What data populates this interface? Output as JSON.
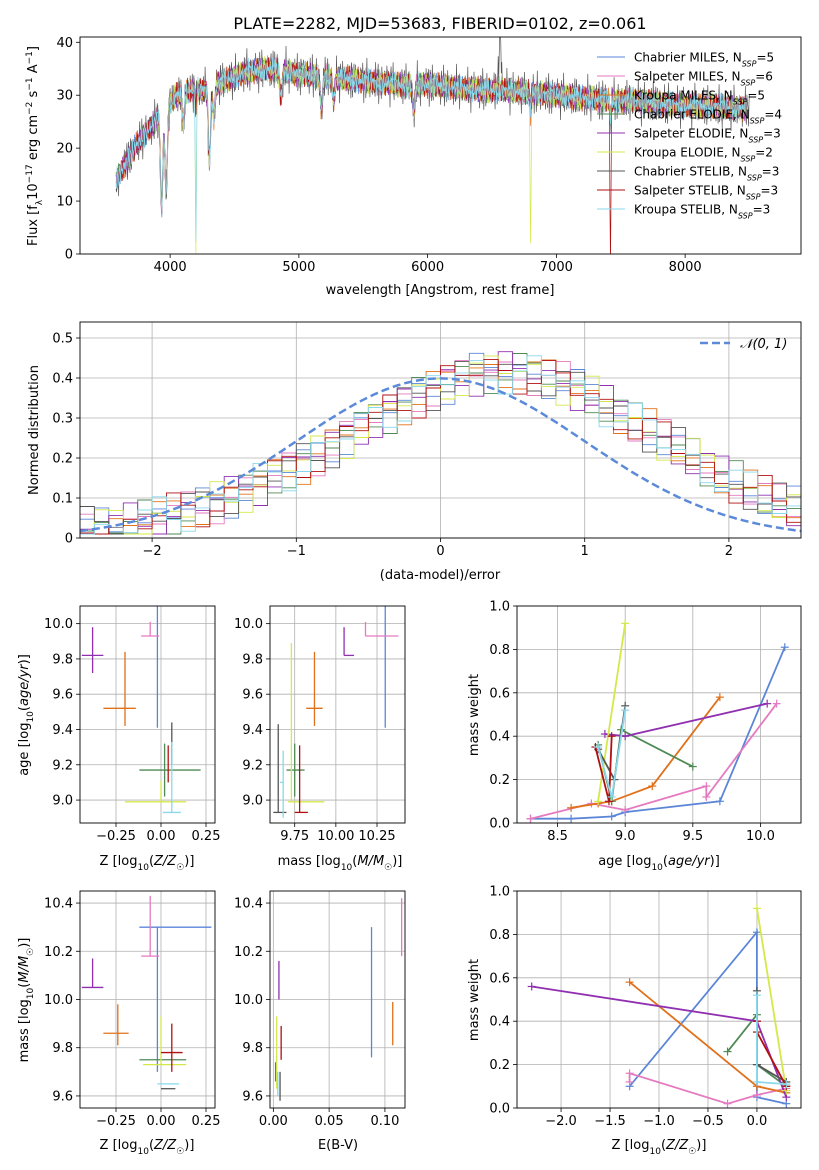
{
  "figure_title": "PLATE=2282, MJD=53683, FIBERID=0102, z=0.061",
  "fit_names": [
    "Chabrier MILES",
    "Salpeter MILES",
    "Kroupa MILES",
    "Chabrier ELODIE",
    "Salpeter ELODIE",
    "Kroupa ELODIE",
    "Chabrier STELIB",
    "Salpeter STELIB",
    "Kroupa STELIB"
  ],
  "fit_colors": [
    "#5b86d8",
    "#e57ac0",
    "#e0701a",
    "#4f8a54",
    "#9030b0",
    "#d4e84a",
    "#555555",
    "#b01010",
    "#8ad8ec"
  ],
  "chart_data": [
    {
      "id": "spectrum",
      "type": "line",
      "xlabel": "wavelength [Angstrom, rest frame]",
      "ylabel": "Flux [f_λ10^-17 erg cm^-2 s^-1 A^-1]",
      "xlim": [
        3300,
        8900
      ],
      "ylim": [
        0,
        41
      ],
      "xticks": [
        4000,
        5000,
        6000,
        7000,
        8000
      ],
      "yticks": [
        0,
        10,
        20,
        30,
        40
      ],
      "grid": false,
      "legend_position": "top-right",
      "legend": [
        "Chabrier MILES, N_SSP=5",
        "Salpeter MILES, N_SSP=6",
        "Kroupa MILES, N_SSP=5",
        "Chabrier ELODIE, N_SSP=4",
        "Salpeter ELODIE, N_SSP=3",
        "Kroupa ELODIE, N_SSP=2",
        "Chabrier STELIB, N_SSP=3",
        "Salpeter STELIB, N_SSP=3",
        "Kroupa STELIB, N_SSP=3"
      ],
      "continuum": {
        "x": [
          3580,
          3650,
          3750,
          3850,
          3950,
          4050,
          4150,
          4250,
          4350,
          4450,
          4600,
          4800,
          5000,
          5200,
          5400,
          5600,
          5800,
          6000,
          6200,
          6400,
          6600,
          6800,
          7000,
          7200,
          7400,
          7600,
          7800,
          8000,
          8200,
          8400,
          8500
        ],
        "y": [
          14,
          17,
          21,
          24,
          27,
          30,
          31,
          31,
          32,
          33,
          34.5,
          35,
          34,
          33.5,
          33,
          32.5,
          32,
          32,
          31.5,
          31,
          31,
          30.5,
          30,
          29.5,
          29,
          29,
          28.5,
          28,
          28,
          27.5,
          27.5
        ]
      },
      "features": [
        {
          "x": 3934,
          "depth": 18
        },
        {
          "x": 3969,
          "depth": 16
        },
        {
          "x": 4102,
          "depth": 6
        },
        {
          "x": 4200,
          "depth": 30
        },
        {
          "x": 4305,
          "depth": 14
        },
        {
          "x": 4340,
          "depth": 6
        },
        {
          "x": 4861,
          "depth": 5
        },
        {
          "x": 5175,
          "depth": 6
        },
        {
          "x": 5270,
          "depth": 4
        },
        {
          "x": 5892,
          "depth": 5
        },
        {
          "x": 6563,
          "depth": -10
        },
        {
          "x": 6800,
          "depth": 30
        },
        {
          "x": 7420,
          "depth": 30
        }
      ]
    },
    {
      "id": "residuals",
      "type": "histogram",
      "xlabel": "(data-model)/error",
      "ylabel": "Normed distribution",
      "xlim": [
        -2.5,
        2.5
      ],
      "ylim": [
        0,
        0.54
      ],
      "xticks": [
        -2,
        -1,
        0,
        1,
        2
      ],
      "yticks": [
        0.0,
        0.1,
        0.2,
        0.3,
        0.4,
        0.5
      ],
      "grid": true,
      "legend_position": "top-right",
      "reference_curve": {
        "label": "𝒩(0, 1)",
        "color": "#5b8ad8"
      },
      "bin_width": 0.1,
      "bin_start": -2.5,
      "series_profile": [
        0.022,
        0.025,
        0.03,
        0.036,
        0.043,
        0.05,
        0.059,
        0.069,
        0.08,
        0.093,
        0.106,
        0.121,
        0.137,
        0.155,
        0.173,
        0.193,
        0.213,
        0.234,
        0.256,
        0.278,
        0.299,
        0.32,
        0.34,
        0.359,
        0.376,
        0.391,
        0.403,
        0.412,
        0.417,
        0.418,
        0.416,
        0.41,
        0.4,
        0.387,
        0.371,
        0.352,
        0.332,
        0.311,
        0.289,
        0.266,
        0.243,
        0.22,
        0.197,
        0.175,
        0.154,
        0.134,
        0.115,
        0.098,
        0.083,
        0.07
      ]
    },
    {
      "id": "age_vs_Z",
      "type": "errorbar",
      "xlabel": "Z [log10(Z/Z☉)]",
      "ylabel": "age  [log10(age/yr)]",
      "xlim": [
        -0.45,
        0.3
      ],
      "ylim": [
        8.87,
        10.1
      ],
      "xticks": [
        -0.25,
        0.0,
        0.25
      ],
      "xticklabels": [
        "−0.25",
        "0.00",
        "0.25"
      ],
      "yticks": [
        9.0,
        9.2,
        9.4,
        9.6,
        9.8,
        10.0
      ],
      "yticklabels": [
        "9.0",
        "9.2",
        "9.4",
        "9.6",
        "9.8",
        "10.0"
      ],
      "grid": true,
      "points": [
        {
          "x": -0.02,
          "y": 10.11,
          "xerr": [
            0.1,
            0.3
          ],
          "yerr": [
            0.7,
            0.0
          ]
        },
        {
          "x": -0.06,
          "y": 9.93,
          "xerr": [
            0.05,
            0.05
          ],
          "yerr": [
            0.0,
            0.08
          ]
        },
        {
          "x": -0.2,
          "y": 9.52,
          "xerr": [
            0.12,
            0.06
          ],
          "yerr": [
            0.1,
            0.32
          ]
        },
        {
          "x": 0.02,
          "y": 9.17,
          "xerr": [
            0.14,
            0.2
          ],
          "yerr": [
            0.15,
            0.15
          ]
        },
        {
          "x": -0.38,
          "y": 9.82,
          "xerr": [
            0.06,
            0.06
          ],
          "yerr": [
            0.1,
            0.16
          ]
        },
        {
          "x": 0.0,
          "y": 8.99,
          "xerr": [
            0.2,
            0.14
          ],
          "yerr": [
            0.0,
            0.12
          ]
        },
        {
          "x": 0.06,
          "y": 9.35,
          "xerr": [
            0.0,
            0.0
          ],
          "yerr": [
            0.15,
            0.09
          ]
        },
        {
          "x": 0.04,
          "y": 9.2,
          "xerr": [
            0.0,
            0.0
          ],
          "yerr": [
            0.1,
            0.11
          ]
        },
        {
          "x": 0.06,
          "y": 8.93,
          "xerr": [
            0.05,
            0.05
          ],
          "yerr": [
            0.0,
            0.4
          ]
        }
      ]
    },
    {
      "id": "age_vs_mass",
      "type": "errorbar",
      "xlabel": "mass [log10(M/M☉)]",
      "ylabel": "",
      "xlim": [
        9.6,
        10.42
      ],
      "ylim": [
        8.87,
        10.1
      ],
      "xticks": [
        9.75,
        10.0,
        10.25
      ],
      "xticklabels": [
        "9.75",
        "10.00",
        "10.25"
      ],
      "yticks": [
        9.0,
        9.2,
        9.4,
        9.6,
        9.8,
        10.0
      ],
      "yticklabels": [
        "9.0",
        "9.2",
        "9.4",
        "9.6",
        "9.8",
        "10.0"
      ],
      "grid": true,
      "points": [
        {
          "x": 10.3,
          "y": 10.11,
          "xerr": [
            0.3,
            0.0
          ],
          "yerr": [
            0.7,
            0.0
          ]
        },
        {
          "x": 10.18,
          "y": 9.93,
          "xerr": [
            0.0,
            0.2
          ],
          "yerr": [
            0.0,
            0.08
          ]
        },
        {
          "x": 9.87,
          "y": 9.52,
          "xerr": [
            0.05,
            0.05
          ],
          "yerr": [
            0.1,
            0.32
          ]
        },
        {
          "x": 9.75,
          "y": 9.17,
          "xerr": [
            0.05,
            0.06
          ],
          "yerr": [
            0.15,
            0.15
          ]
        },
        {
          "x": 10.05,
          "y": 9.82,
          "xerr": [
            0.0,
            0.06
          ],
          "yerr": [
            0.0,
            0.16
          ]
        },
        {
          "x": 9.73,
          "y": 8.99,
          "xerr": [
            0.02,
            0.2
          ],
          "yerr": [
            0.0,
            0.9
          ]
        },
        {
          "x": 9.65,
          "y": 8.93,
          "xerr": [
            0.03,
            0.05
          ],
          "yerr": [
            0.0,
            0.5
          ]
        },
        {
          "x": 9.78,
          "y": 8.93,
          "xerr": [
            0.03,
            0.05
          ],
          "yerr": [
            0.0,
            0.38
          ]
        },
        {
          "x": 9.68,
          "y": 9.1,
          "xerr": [
            0.02,
            0.0
          ],
          "yerr": [
            0.2,
            0.18
          ]
        }
      ]
    },
    {
      "id": "weight_vs_age",
      "type": "line",
      "xlabel": "age  [log10(age/yr)]",
      "ylabel": "mass weight",
      "xlim": [
        8.2,
        10.3
      ],
      "ylim": [
        0,
        1
      ],
      "xticks": [
        8.5,
        9.0,
        9.5,
        10.0
      ],
      "xticklabels": [
        "8.5",
        "9.0",
        "9.5",
        "10.0"
      ],
      "yticks": [
        0.0,
        0.2,
        0.4,
        0.6,
        0.8,
        1.0
      ],
      "yticklabels": [
        "0.0",
        "0.2",
        "0.4",
        "0.6",
        "0.8",
        "1.0"
      ],
      "grid": true,
      "series": [
        {
          "x": [
            8.3,
            8.6,
            8.9,
            9.0,
            9.7,
            10.18
          ],
          "y": [
            0.02,
            0.02,
            0.03,
            0.05,
            0.1,
            0.81
          ]
        },
        {
          "x": [
            8.3,
            8.75,
            9.0,
            9.6,
            9.6,
            10.12
          ],
          "y": [
            0.02,
            0.09,
            0.06,
            0.17,
            0.12,
            0.55
          ]
        },
        {
          "x": [
            8.6,
            8.8,
            8.9,
            9.2,
            9.7
          ],
          "y": [
            0.07,
            0.09,
            0.1,
            0.17,
            0.58
          ]
        },
        {
          "x": [
            8.8,
            8.9,
            8.97,
            9.5
          ],
          "y": [
            0.36,
            0.1,
            0.43,
            0.26
          ]
        },
        {
          "x": [
            8.85,
            9.0,
            10.05
          ],
          "y": [
            0.41,
            0.4,
            0.55
          ]
        },
        {
          "x": [
            8.8,
            9.0
          ],
          "y": [
            0.1,
            0.92
          ]
        },
        {
          "x": [
            8.8,
            8.92,
            9.0
          ],
          "y": [
            0.34,
            0.2,
            0.54
          ]
        },
        {
          "x": [
            8.78,
            8.88,
            8.9
          ],
          "y": [
            0.35,
            0.1,
            0.4
          ]
        },
        {
          "x": [
            8.8,
            8.9,
            9.0
          ],
          "y": [
            0.35,
            0.12,
            0.52
          ]
        }
      ]
    },
    {
      "id": "mass_vs_Z",
      "type": "errorbar",
      "xlabel": "Z [log10(Z/Z☉)]",
      "ylabel": "mass [log10(M/M☉)]",
      "xlim": [
        -0.45,
        0.3
      ],
      "ylim": [
        9.55,
        10.45
      ],
      "xticks": [
        -0.25,
        0.0,
        0.25
      ],
      "xticklabels": [
        "−0.25",
        "0.00",
        "0.25"
      ],
      "yticks": [
        9.6,
        9.8,
        10.0,
        10.2,
        10.4
      ],
      "yticklabels": [
        "9.6",
        "9.8",
        "10.0",
        "10.2",
        "10.4"
      ],
      "grid": true,
      "points": [
        {
          "x": -0.02,
          "y": 10.3,
          "xerr": [
            0.1,
            0.3
          ],
          "yerr": [
            0.6,
            0.0
          ]
        },
        {
          "x": -0.06,
          "y": 10.18,
          "xerr": [
            0.05,
            0.05
          ],
          "yerr": [
            0.0,
            0.25
          ]
        },
        {
          "x": -0.24,
          "y": 9.86,
          "xerr": [
            0.08,
            0.06
          ],
          "yerr": [
            0.05,
            0.12
          ]
        },
        {
          "x": 0.0,
          "y": 9.75,
          "xerr": [
            0.12,
            0.14
          ],
          "yerr": [
            0.0,
            0.0
          ]
        },
        {
          "x": -0.38,
          "y": 10.05,
          "xerr": [
            0.06,
            0.06
          ],
          "yerr": [
            0.0,
            0.12
          ]
        },
        {
          "x": 0.0,
          "y": 9.73,
          "xerr": [
            0.1,
            0.14
          ],
          "yerr": [
            0.0,
            0.2
          ]
        },
        {
          "x": 0.02,
          "y": 9.63,
          "xerr": [
            0.02,
            0.06
          ],
          "yerr": [
            0.0,
            0.0
          ]
        },
        {
          "x": 0.06,
          "y": 9.78,
          "xerr": [
            0.06,
            0.06
          ],
          "yerr": [
            0.08,
            0.12
          ]
        },
        {
          "x": 0.04,
          "y": 9.65,
          "xerr": [
            0.06,
            0.06
          ],
          "yerr": [
            0.0,
            0.0
          ]
        }
      ]
    },
    {
      "id": "mass_vs_ebv",
      "type": "errorbar",
      "xlabel": "E(B-V)",
      "ylabel": "",
      "xlim": [
        -0.003,
        0.118
      ],
      "ylim": [
        9.55,
        10.45
      ],
      "xticks": [
        0.0,
        0.05,
        0.1
      ],
      "xticklabels": [
        "0.00",
        "0.05",
        "0.10"
      ],
      "yticks": [
        9.6,
        9.8,
        10.0,
        10.2,
        10.4
      ],
      "yticklabels": [
        "9.6",
        "9.8",
        "10.0",
        "10.2",
        "10.4"
      ],
      "grid": true,
      "points": [
        {
          "x": 0.088,
          "y": 10.03,
          "xerr": [
            0,
            0
          ],
          "yerr": [
            0.27,
            0.27
          ]
        },
        {
          "x": 0.115,
          "y": 10.3,
          "xerr": [
            0,
            0
          ],
          "yerr": [
            0.12,
            0.12
          ]
        },
        {
          "x": 0.107,
          "y": 9.9,
          "xerr": [
            0,
            0
          ],
          "yerr": [
            0.09,
            0.09
          ]
        },
        {
          "x": 0.002,
          "y": 9.7,
          "xerr": [
            0,
            0
          ],
          "yerr": [
            0.04,
            0.04
          ]
        },
        {
          "x": 0.005,
          "y": 10.08,
          "xerr": [
            0,
            0
          ],
          "yerr": [
            0.08,
            0.08
          ]
        },
        {
          "x": 0.003,
          "y": 9.78,
          "xerr": [
            0,
            0
          ],
          "yerr": [
            0.15,
            0.15
          ]
        },
        {
          "x": 0.006,
          "y": 9.64,
          "xerr": [
            0,
            0
          ],
          "yerr": [
            0.06,
            0.06
          ]
        },
        {
          "x": 0.007,
          "y": 9.82,
          "xerr": [
            0,
            0
          ],
          "yerr": [
            0.07,
            0.07
          ]
        },
        {
          "x": 0.004,
          "y": 9.65,
          "xerr": [
            0,
            0
          ],
          "yerr": [
            0.05,
            0.05
          ]
        }
      ]
    },
    {
      "id": "weight_vs_Z",
      "type": "line",
      "xlabel": "Z [log10(Z/Z☉)]",
      "ylabel": "mass weight",
      "xlim": [
        -2.45,
        0.45
      ],
      "ylim": [
        0,
        1
      ],
      "xticks": [
        -2.0,
        -1.5,
        -1.0,
        -0.5,
        0.0
      ],
      "xticklabels": [
        "−2.0",
        "−1.5",
        "−1.0",
        "−0.5",
        "0.0"
      ],
      "yticks": [
        0.0,
        0.2,
        0.4,
        0.6,
        0.8,
        1.0
      ],
      "yticklabels": [
        "0.0",
        "0.2",
        "0.4",
        "0.6",
        "0.8",
        "1.0"
      ],
      "grid": true,
      "series": [
        {
          "x": [
            -1.3,
            0.0,
            0.0,
            0.3
          ],
          "y": [
            0.1,
            0.81,
            0.05,
            0.02
          ]
        },
        {
          "x": [
            -1.3,
            -1.3,
            -0.3,
            0.0,
            0.3
          ],
          "y": [
            0.12,
            0.16,
            0.02,
            0.06,
            0.09
          ]
        },
        {
          "x": [
            -1.3,
            0.0,
            0.3
          ],
          "y": [
            0.58,
            0.1,
            0.07
          ]
        },
        {
          "x": [
            -0.3,
            0.0,
            0.0,
            0.3
          ],
          "y": [
            0.26,
            0.43,
            0.2,
            0.1
          ]
        },
        {
          "x": [
            -2.3,
            0.0,
            0.3
          ],
          "y": [
            0.56,
            0.4,
            0.05
          ]
        },
        {
          "x": [
            0.0,
            0.3
          ],
          "y": [
            0.92,
            0.08
          ]
        },
        {
          "x": [
            0.0,
            0.0,
            0.3
          ],
          "y": [
            0.54,
            0.2,
            0.12
          ]
        },
        {
          "x": [
            0.0,
            0.0,
            0.3
          ],
          "y": [
            0.4,
            0.35,
            0.1
          ]
        },
        {
          "x": [
            0.0,
            0.0,
            0.3
          ],
          "y": [
            0.52,
            0.12,
            0.11
          ]
        }
      ]
    }
  ]
}
